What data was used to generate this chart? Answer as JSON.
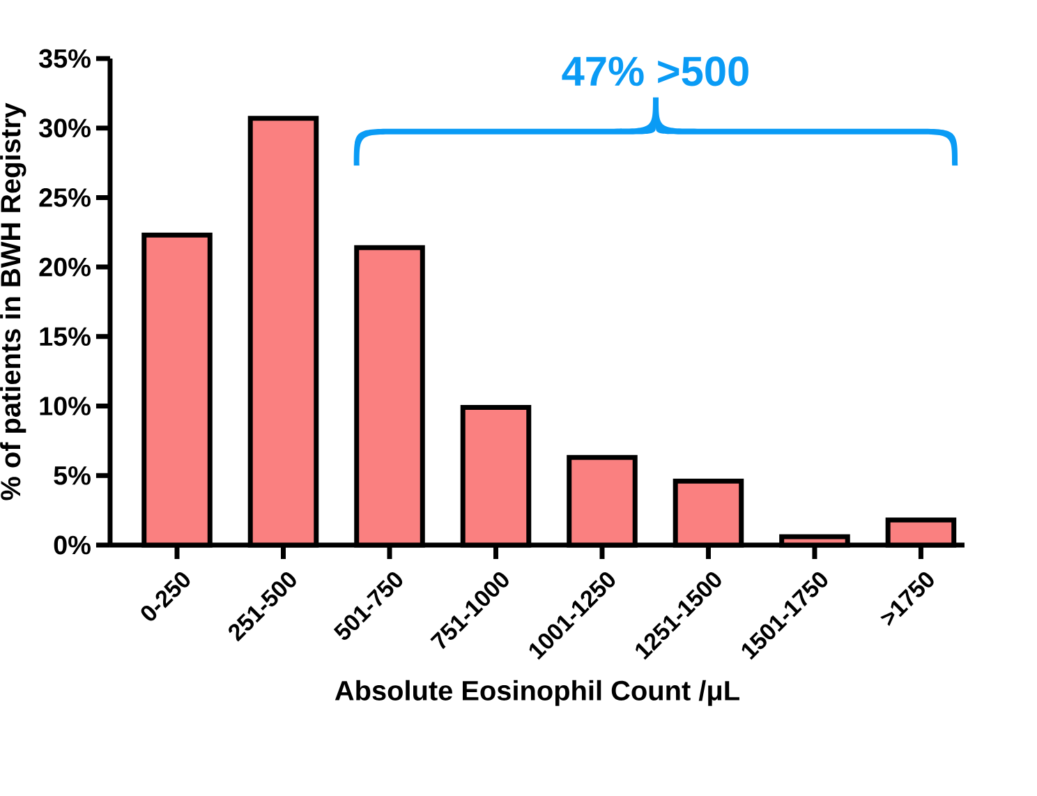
{
  "chart_data": {
    "type": "bar",
    "xlabel": "Absolute Eosinophil Count /μL",
    "ylabel": "% of patients in BWH Registry",
    "categories": [
      "0-250",
      "251-500",
      "501-750",
      "751-1000",
      "1001-1250",
      "1251-1500",
      "1501-1750",
      ">1750"
    ],
    "values": [
      22.3,
      30.7,
      21.4,
      9.9,
      6.3,
      4.6,
      0.6,
      1.8
    ],
    "color": "#fa8080",
    "ylim": [
      0,
      35
    ],
    "yticks": [
      {
        "value": 0,
        "label": "0%"
      },
      {
        "value": 5,
        "label": "5%"
      },
      {
        "value": 10,
        "label": "10%"
      },
      {
        "value": 15,
        "label": "15%"
      },
      {
        "value": 20,
        "label": "20%"
      },
      {
        "value": 25,
        "label": "25%"
      },
      {
        "value": 30,
        "label": "30%"
      },
      {
        "value": 35,
        "label": "35%"
      }
    ],
    "annotations": [
      "47% >500"
    ]
  }
}
